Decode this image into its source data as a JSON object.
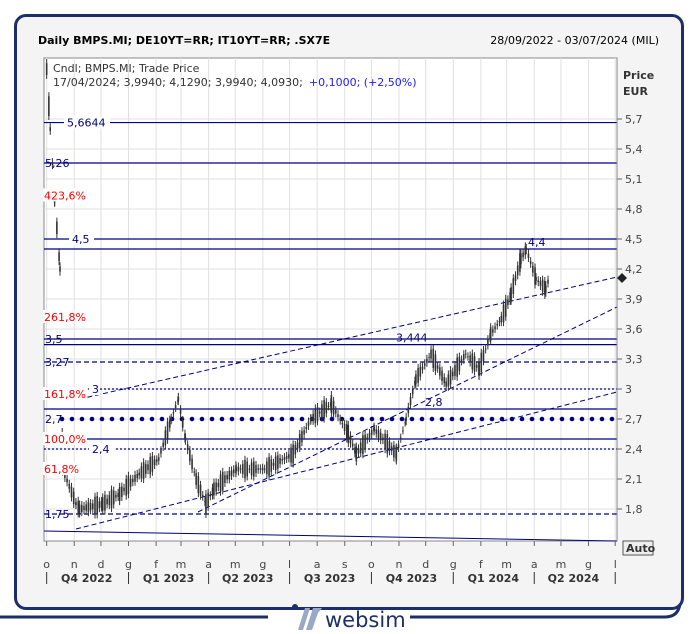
{
  "header": {
    "title": "Daily BMPS.MI; DE10YT=RR; IT10YT=RR; .SX7E",
    "date_range": "28/09/2022 - 03/07/2024 (MIL)"
  },
  "legend": {
    "line1": "Cndl; BMPS.MI; Trade Price",
    "ohlc": "17/04/2024; 3,9940; 4,1290; 3,9940; 4,0930;",
    "change": "+0,1000; (+2,50%)"
  },
  "axis": {
    "title1": "Price",
    "title2": "EUR",
    "auto_label": "Auto"
  },
  "colors": {
    "levels": "#000080",
    "fib": "#ff0000",
    "candles": "#333333",
    "grid": "#e0e0e0"
  },
  "footer": {
    "brand": "websim"
  },
  "chart_data": {
    "type": "candlestick",
    "title": "Daily BMPS.MI; DE10YT=RR; IT10YT=RR; .SX7E",
    "ylabel": "Price EUR",
    "ylim": [
      1.55,
      6.3
    ],
    "xlim": [
      "2022-09-28",
      "2024-07-03"
    ],
    "grid": true,
    "yticks": [
      "5,7",
      "5,4",
      "5,1",
      "4,8",
      "4,5",
      "4,2",
      "3,9",
      "3,6",
      "3,3",
      "3",
      "2,7",
      "2,4",
      "2,1",
      "1,8"
    ],
    "ytick_values": [
      5.7,
      5.4,
      5.1,
      4.8,
      4.5,
      4.2,
      3.9,
      3.6,
      3.3,
      3.0,
      2.7,
      2.4,
      2.1,
      1.8
    ],
    "month_ticks": [
      "o",
      "n",
      "d",
      "g",
      "f",
      "m",
      "a",
      "m",
      "g",
      "l",
      "a",
      "s",
      "o",
      "n",
      "d",
      "g",
      "f",
      "m",
      "a",
      "m",
      "g",
      "l"
    ],
    "month_dates": [
      "2022-10-01",
      "2022-11-01",
      "2022-12-01",
      "2023-01-01",
      "2023-02-01",
      "2023-03-01",
      "2023-04-01",
      "2023-05-01",
      "2023-06-01",
      "2023-07-01",
      "2023-08-01",
      "2023-09-01",
      "2023-10-01",
      "2023-11-01",
      "2023-12-01",
      "2024-01-01",
      "2024-02-01",
      "2024-03-01",
      "2024-04-01",
      "2024-05-01",
      "2024-06-01",
      "2024-07-01"
    ],
    "quarters": [
      "Q4 2022",
      "Q1 2023",
      "Q2 2023",
      "Q3 2023",
      "Q4 2023",
      "Q1 2024",
      "Q2 2024"
    ],
    "quarter_dates": [
      "2022-11-15",
      "2023-02-15",
      "2023-05-15",
      "2023-08-15",
      "2023-11-15",
      "2024-02-15",
      "2024-05-15"
    ],
    "series": [
      {
        "dates": [
          "2022-10-01",
          "2022-10-05",
          "2022-10-10",
          "2022-10-16",
          "2022-10-19",
          "2022-11-03",
          "2022-11-07",
          "2022-12-03",
          "2022-12-22",
          "2023-01-13",
          "2023-02-04",
          "2023-02-18",
          "2023-02-26",
          "2023-03-06",
          "2023-03-18",
          "2023-03-29",
          "2023-04-07",
          "2023-05-02",
          "2023-06-03",
          "2023-07-05",
          "2023-07-25",
          "2023-08-17",
          "2023-09-05",
          "2023-09-14",
          "2023-10-04",
          "2023-10-29",
          "2023-11-09",
          "2023-11-20",
          "2023-12-07",
          "2023-12-24",
          "2024-01-15",
          "2024-01-30",
          "2024-02-12",
          "2024-02-24",
          "2024-03-06",
          "2024-03-17",
          "2024-03-23",
          "2024-04-03",
          "2024-04-14",
          "2024-04-17"
        ],
        "close": [
          6.2,
          5.6,
          4.9,
          4.2,
          2.2,
          1.85,
          1.8,
          1.85,
          1.95,
          2.15,
          2.3,
          2.7,
          2.9,
          2.5,
          2.1,
          1.85,
          2.0,
          2.2,
          2.2,
          2.35,
          2.7,
          2.85,
          2.55,
          2.35,
          2.6,
          2.35,
          2.7,
          3.1,
          3.35,
          3.05,
          3.35,
          3.2,
          3.55,
          3.7,
          3.95,
          4.3,
          4.4,
          4.1,
          4.0,
          4.09
        ]
      }
    ],
    "levels": [
      {
        "value": 5.6644,
        "label": "5,6644",
        "style": "solid"
      },
      {
        "value": 5.26,
        "label": "5,26",
        "style": "solid"
      },
      {
        "value": 4.5,
        "label": "4,5",
        "style": "solid"
      },
      {
        "value": 4.4,
        "label": "4,4",
        "style": "solid"
      },
      {
        "value": 3.5,
        "label": "3,5",
        "style": "solid"
      },
      {
        "value": 3.444,
        "label": "3,444",
        "style": "solid"
      },
      {
        "value": 3.27,
        "label": "3,27",
        "style": "dashed"
      },
      {
        "value": 3.0,
        "label": "3",
        "style": "dotted"
      },
      {
        "value": 2.8,
        "label": "2,8",
        "style": "solid"
      },
      {
        "value": 2.7,
        "label": "2,7",
        "style": "dots"
      },
      {
        "value": 2.5,
        "label": "",
        "style": "solid"
      },
      {
        "value": 2.4,
        "label": "2,4",
        "style": "dotted"
      },
      {
        "value": 1.75,
        "label": "1,75",
        "style": "dashed"
      }
    ],
    "fib_labels": [
      {
        "value": 4.935,
        "label": "423,6%"
      },
      {
        "value": 3.72,
        "label": "261,8%"
      },
      {
        "value": 2.95,
        "label": "161,8%"
      },
      {
        "value": 2.5,
        "label": "100,0%"
      },
      {
        "value": 2.2,
        "label": "61,8%"
      }
    ],
    "trendlines": [
      {
        "from": [
          "2022-11-03",
          1.6
        ],
        "to": [
          "2024-07-03",
          2.97
        ]
      },
      {
        "from": [
          "2022-11-07",
          2.9
        ],
        "to": [
          "2024-07-03",
          4.12
        ]
      },
      {
        "from": [
          "2023-03-20",
          1.77
        ],
        "to": [
          "2024-07-03",
          3.82
        ]
      }
    ]
  }
}
